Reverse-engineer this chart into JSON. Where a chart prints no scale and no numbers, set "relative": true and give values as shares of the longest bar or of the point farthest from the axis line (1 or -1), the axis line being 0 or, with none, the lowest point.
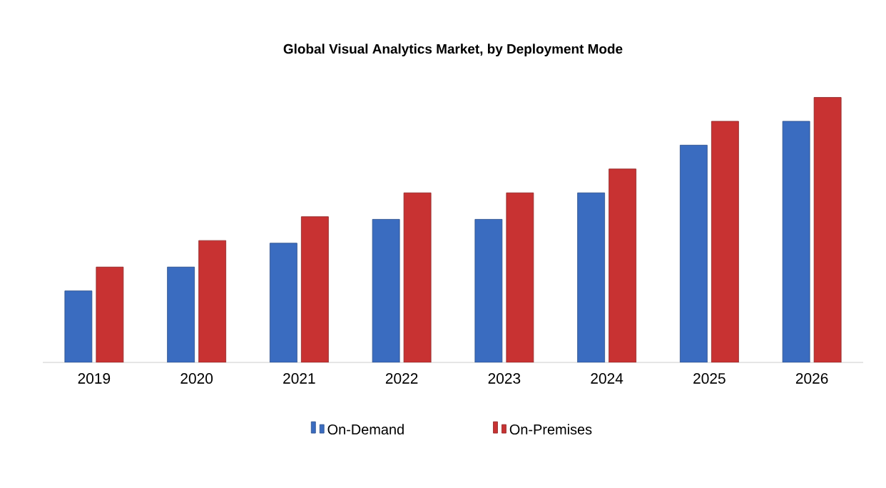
{
  "chart_data": {
    "type": "bar",
    "title": "Global Visual Analytics Market, by Deployment Mode",
    "categories": [
      "2019",
      "2020",
      "2021",
      "2022",
      "2023",
      "2024",
      "2025",
      "2026"
    ],
    "relative": true,
    "legend": "bottom",
    "series": [
      {
        "name": "On-Demand",
        "color": "#3a6cc0",
        "values": [
          0.27,
          0.36,
          0.45,
          0.54,
          0.54,
          0.64,
          0.82,
          0.91
        ]
      },
      {
        "name": "On-Premises",
        "color": "#c83232",
        "values": [
          0.36,
          0.46,
          0.55,
          0.64,
          0.64,
          0.73,
          0.91,
          1.0
        ]
      }
    ]
  }
}
